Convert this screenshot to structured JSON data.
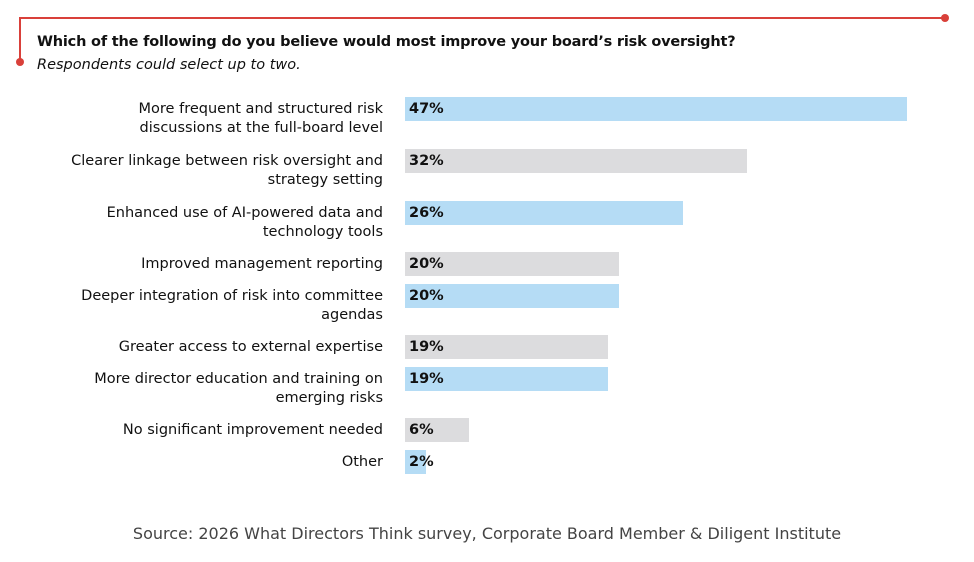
{
  "colors": {
    "accent_line": "#d9403a",
    "bar_blue": "#b5dcf5",
    "bar_gray": "#dcdcde",
    "text": "#111111",
    "source_text": "#444444"
  },
  "chart_data": {
    "type": "bar",
    "orientation": "horizontal",
    "title": "Which of the following do you believe would most improve your board’s risk oversight?",
    "subtitle": "Respondents could select up to two.",
    "xlabel": "",
    "ylabel": "",
    "unit": "%",
    "xlim": [
      0,
      47
    ],
    "grid": false,
    "categories": [
      "More frequent and structured risk\ndiscussions at the full-board level",
      "Clearer linkage between risk oversight and\nstrategy setting",
      "Enhanced use of AI-powered data and\ntechnology tools",
      "Improved management reporting",
      "Deeper integration of risk into committee\nagendas",
      "Greater access to external expertise",
      "More director education and training on\nemerging risks",
      "No significant improvement needed",
      "Other"
    ],
    "values": [
      47,
      32,
      26,
      20,
      20,
      19,
      19,
      6,
      2
    ],
    "value_labels": [
      "47%",
      "32%",
      "26%",
      "20%",
      "20%",
      "19%",
      "19%",
      "6%",
      "2%"
    ],
    "bar_colors": [
      "blue",
      "gray",
      "blue",
      "gray",
      "blue",
      "gray",
      "blue",
      "gray",
      "blue"
    ],
    "source": "Source: 2026 What Directors Think survey, Corporate Board Member & Diligent Institute"
  }
}
